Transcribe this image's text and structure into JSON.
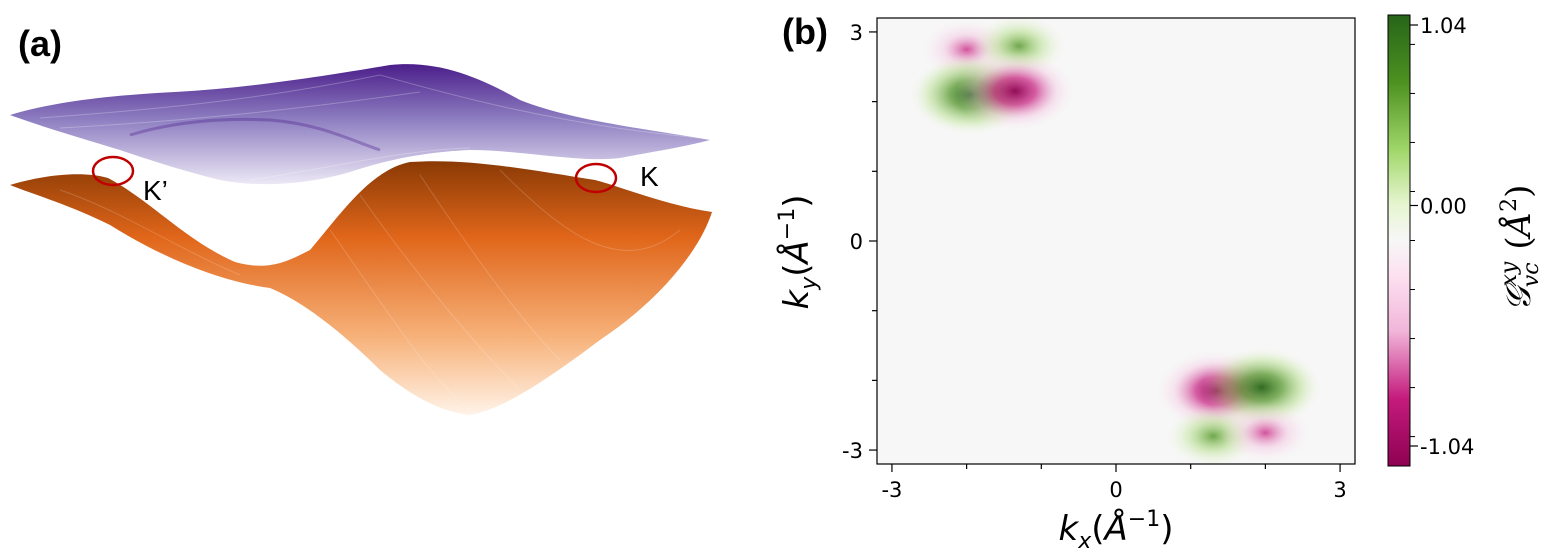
{
  "panel_a": {
    "label": "(a)",
    "valley_labels": [
      "K’",
      "K"
    ],
    "colors": {
      "conduction_band": "#6a3d9a",
      "valence_band": "#d95f0e",
      "valley_marker": "#c00000"
    }
  },
  "panel_b": {
    "label": "(b)"
  },
  "chart_data": {
    "type": "heatmap",
    "title": "",
    "xlabel": "k_x(Å^-1)",
    "ylabel": "k_y(Å^-1)",
    "xlim": [
      -3.2,
      3.2
    ],
    "ylim": [
      -3.2,
      3.2
    ],
    "x_ticks": [
      -3,
      0,
      3
    ],
    "y_ticks": [
      3,
      0,
      -3
    ],
    "x_tick_labels": [
      "-3",
      "0",
      "3"
    ],
    "y_tick_labels": [
      "3",
      "0",
      "-3"
    ],
    "colorbar": {
      "label": "G_vc^xy (Å^2)",
      "range": [
        -1.04,
        1.04
      ],
      "tick_labels": [
        "1.04",
        "0.00",
        "-1.04"
      ],
      "colormap": "PiYG",
      "colors": {
        "max": "#276419",
        "mid": "#f7f7f7",
        "min": "#8e0152"
      }
    },
    "features": [
      {
        "kx": -2.0,
        "ky": 2.75,
        "sign": -1,
        "value": -0.55
      },
      {
        "kx": -1.3,
        "ky": 2.8,
        "sign": 1,
        "value": 0.6
      },
      {
        "kx": -1.95,
        "ky": 2.1,
        "sign": 1,
        "value": 1.04
      },
      {
        "kx": -1.35,
        "ky": 2.15,
        "sign": -1,
        "value": -1.0
      },
      {
        "kx": 1.35,
        "ky": -2.15,
        "sign": -1,
        "value": -1.04
      },
      {
        "kx": 1.95,
        "ky": -2.1,
        "sign": 1,
        "value": 1.0
      },
      {
        "kx": 1.3,
        "ky": -2.8,
        "sign": 1,
        "value": 0.6
      },
      {
        "kx": 2.0,
        "ky": -2.75,
        "sign": -1,
        "value": -0.55
      }
    ]
  }
}
